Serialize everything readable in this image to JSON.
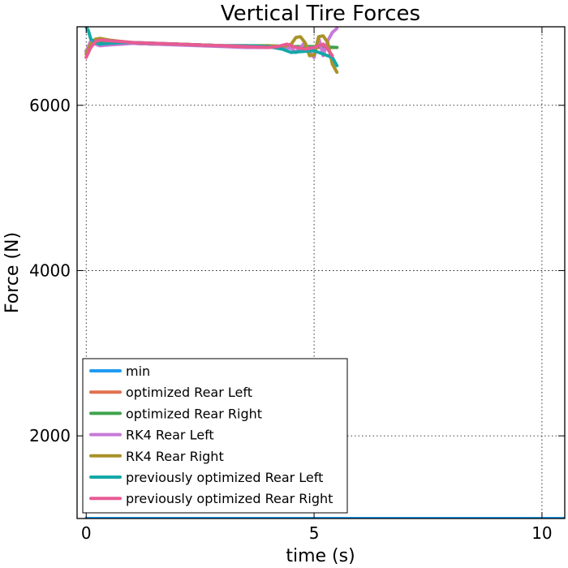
{
  "chart_data": {
    "type": "line",
    "title": "Vertical Tire Forces",
    "xlabel": "time (s)",
    "ylabel": "Force (N)",
    "xlim": [
      -0.2,
      10.5
    ],
    "ylim": [
      1000,
      6950
    ],
    "xticks": [
      0,
      5,
      10
    ],
    "yticks": [
      2000,
      4000,
      6000
    ],
    "grid": true,
    "legend_position": "lower-left",
    "series": [
      {
        "name": "min",
        "color": "#1f9bf0",
        "x": [
          0,
          10.5
        ],
        "y": [
          1000,
          1000
        ]
      },
      {
        "name": "optimized Rear Left",
        "color": "#e2704e",
        "x": [
          0,
          0.1,
          0.2,
          0.4,
          0.7,
          1.0,
          1.5,
          2.0,
          2.5,
          3.0,
          3.5,
          4.0,
          4.5,
          5.0,
          5.5
        ],
        "y": [
          6620,
          6720,
          6760,
          6770,
          6760,
          6750,
          6740,
          6740,
          6730,
          6720,
          6720,
          6710,
          6710,
          6700,
          6700
        ]
      },
      {
        "name": "optimized Rear Right",
        "color": "#3fa34d",
        "x": [
          0,
          0.1,
          0.2,
          0.4,
          0.7,
          1.0,
          1.5,
          2.0,
          2.5,
          3.0,
          3.5,
          4.0,
          4.5,
          5.0,
          5.5
        ],
        "y": [
          6660,
          6740,
          6780,
          6770,
          6760,
          6750,
          6740,
          6740,
          6730,
          6720,
          6720,
          6720,
          6710,
          6710,
          6700
        ]
      },
      {
        "name": "RK4 Rear Left",
        "color": "#c779d8",
        "x": [
          0,
          0.1,
          0.2,
          0.3,
          0.5,
          0.8,
          1.0,
          1.5,
          2.0,
          2.5,
          3.0,
          3.5,
          4.0,
          4.3,
          4.5,
          4.6,
          4.7,
          4.8,
          4.9,
          5.0,
          5.1,
          5.2,
          5.3,
          5.4,
          5.5
        ],
        "y": [
          6650,
          6780,
          6740,
          6720,
          6730,
          6740,
          6750,
          6740,
          6730,
          6720,
          6710,
          6700,
          6700,
          6710,
          6690,
          6640,
          6700,
          6760,
          6640,
          6580,
          6820,
          6600,
          6780,
          6880,
          6930
        ]
      },
      {
        "name": "RK4 Rear Right",
        "color": "#a99226",
        "x": [
          0,
          0.1,
          0.2,
          0.3,
          0.5,
          0.8,
          1.0,
          1.5,
          2.0,
          2.5,
          3.0,
          3.5,
          4.0,
          4.3,
          4.5,
          4.6,
          4.7,
          4.8,
          4.9,
          5.0,
          5.1,
          5.2,
          5.3,
          5.4,
          5.5
        ],
        "y": [
          6620,
          6740,
          6800,
          6810,
          6790,
          6770,
          6760,
          6750,
          6740,
          6730,
          6720,
          6710,
          6720,
          6710,
          6740,
          6820,
          6830,
          6760,
          6600,
          6610,
          6830,
          6840,
          6760,
          6500,
          6400
        ]
      },
      {
        "name": "previously optimized Rear Left",
        "color": "#15a8a8",
        "x": [
          0,
          0.05,
          0.1,
          0.2,
          0.3,
          0.5,
          0.8,
          1.0,
          1.5,
          2.0,
          2.5,
          3.0,
          3.5,
          4.0,
          4.3,
          4.5,
          4.7,
          5.0,
          5.2,
          5.4,
          5.5
        ],
        "y": [
          6950,
          6900,
          6800,
          6760,
          6740,
          6750,
          6760,
          6760,
          6750,
          6740,
          6730,
          6720,
          6720,
          6710,
          6680,
          6640,
          6650,
          6660,
          6620,
          6580,
          6480
        ]
      },
      {
        "name": "previously optimized Rear Right",
        "color": "#e85b93",
        "x": [
          0,
          0.1,
          0.2,
          0.3,
          0.5,
          0.8,
          1.0,
          1.5,
          2.0,
          2.5,
          3.0,
          3.5,
          4.0,
          4.2,
          4.4,
          4.6,
          4.8,
          5.0,
          5.2,
          5.3,
          5.4
        ],
        "y": [
          6580,
          6700,
          6770,
          6790,
          6780,
          6770,
          6760,
          6750,
          6740,
          6730,
          6720,
          6710,
          6700,
          6710,
          6740,
          6700,
          6680,
          6700,
          6740,
          6680,
          6600
        ]
      }
    ]
  }
}
